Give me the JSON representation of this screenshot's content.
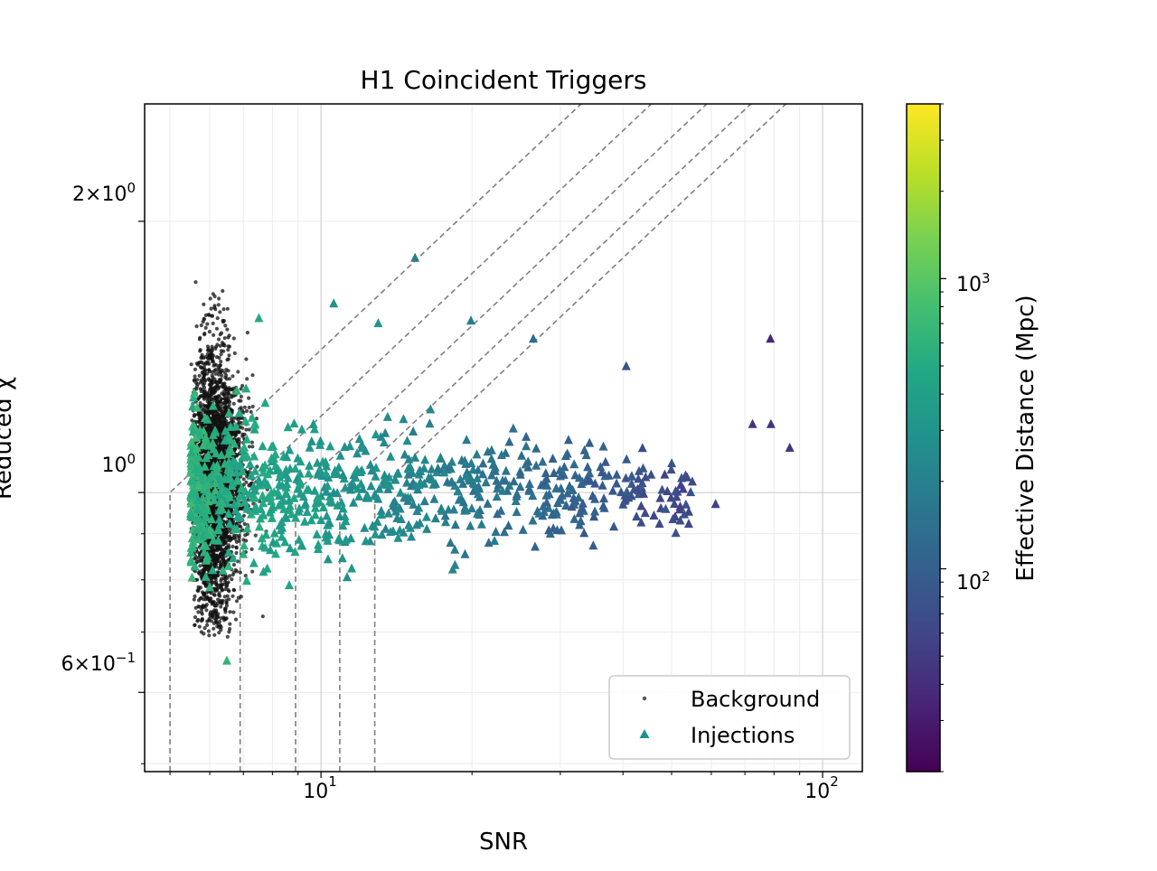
{
  "chart_data": [
    {
      "type": "scatter",
      "title": "H1 Coincident Triggers",
      "xlabel": "SNR",
      "ylabel": "Reduced χ",
      "xscale": "log",
      "yscale": "log",
      "xlim": [
        4.45,
        120
      ],
      "ylim": [
        0.49,
        2.7
      ],
      "grid": true,
      "legend_position": "lower-right",
      "x_tick_labels": [
        "10",
        "1",
        "10",
        "2"
      ],
      "y_tick_labels": [
        {
          "mantissa": "2",
          "times": "×",
          "base": "10",
          "exp": "0"
        },
        {
          "mantissa": "",
          "times": "",
          "base": "10",
          "exp": "0"
        },
        {
          "mantissa": "6",
          "times": "×",
          "base": "10",
          "exp": "−1"
        }
      ],
      "series": [
        {
          "name": "Background",
          "marker": "dot",
          "color": "#000000",
          "distribution": {
            "x_range": [
              5.5,
              7.9
            ],
            "y_range": [
              0.69,
              1.75
            ],
            "peak_x": 6.0,
            "peak_y": 1.0
          }
        },
        {
          "name": "Injections",
          "marker": "triangle",
          "color_by": "Effective Distance (Mpc)",
          "distribution": {
            "x_range": [
              5.5,
              87
            ],
            "y_range": [
              0.65,
              1.82
            ]
          },
          "highlights": [
            {
              "x": 78.7,
              "y": 1.48
            },
            {
              "x": 72.5,
              "y": 1.19
            },
            {
              "x": 78.9,
              "y": 1.19
            },
            {
              "x": 86.0,
              "y": 1.12
            },
            {
              "x": 61.2,
              "y": 0.97
            },
            {
              "x": 53.0,
              "y": 0.945
            },
            {
              "x": 52.0,
              "y": 0.93
            },
            {
              "x": 40.6,
              "y": 1.38
            },
            {
              "x": 26.5,
              "y": 1.48
            },
            {
              "x": 19.9,
              "y": 1.55
            },
            {
              "x": 15.4,
              "y": 1.82
            },
            {
              "x": 10.6,
              "y": 1.62
            },
            {
              "x": 13.0,
              "y": 1.54
            },
            {
              "x": 7.52,
              "y": 1.56
            },
            {
              "x": 18.5,
              "y": 0.83
            },
            {
              "x": 6.49,
              "y": 0.65
            }
          ]
        }
      ],
      "colorbar": {
        "label": "Effective Distance (Mpc)",
        "scale": "log",
        "range": [
          20,
          4000
        ],
        "colormap": "viridis",
        "tick_labels": [
          {
            "base": "10",
            "exp": "2"
          },
          {
            "base": "10",
            "exp": "3"
          }
        ]
      },
      "threshold_curves": [
        {
          "style": "dashed",
          "color": "#7f7f7f",
          "snr_cut": 5.0
        },
        {
          "style": "dashed",
          "color": "#7f7f7f",
          "snr_cut": 6.9
        },
        {
          "style": "dashed",
          "color": "#7f7f7f",
          "snr_cut": 8.9
        },
        {
          "style": "dashed",
          "color": "#7f7f7f",
          "snr_cut": 10.9
        },
        {
          "style": "dashed",
          "color": "#7f7f7f",
          "snr_cut": 12.8
        }
      ]
    }
  ]
}
